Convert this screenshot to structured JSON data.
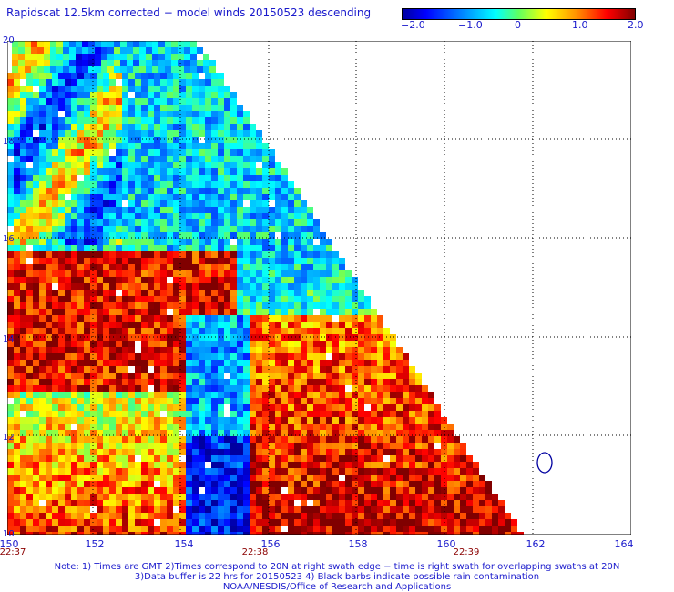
{
  "title": "Rapidscat 12.5km corrected − model winds 20150523 descending",
  "colorbar": {
    "ticks": [
      "−2.0",
      "−1.0",
      "0",
      "1.0",
      "2.0"
    ],
    "range": [
      -2.0,
      2.0
    ]
  },
  "map": {
    "lon_labels": [
      "150",
      "152",
      "154",
      "156",
      "158",
      "160",
      "162",
      "164"
    ],
    "lat_labels": [
      "10",
      "12",
      "14",
      "16",
      "18",
      "20"
    ],
    "lon_range": [
      150,
      164
    ],
    "lat_range": [
      10,
      20
    ],
    "time_labels": [
      "22:37",
      "22:38",
      "22:39"
    ],
    "grid": true
  },
  "notes": {
    "line1": "Note: 1) Times are GMT 2)Times correspond to 20N at right swath edge − time is right swath for overlapping swaths at 20N",
    "line2": "3)Data buffer is 22 hrs for 20150523 4) Black barbs indicate possible rain contamination",
    "line3": "NOAA/NESDIS/Office of Research and Applications"
  },
  "colors": {
    "text": "#1a1acc",
    "time_text": "#8b0000"
  }
}
